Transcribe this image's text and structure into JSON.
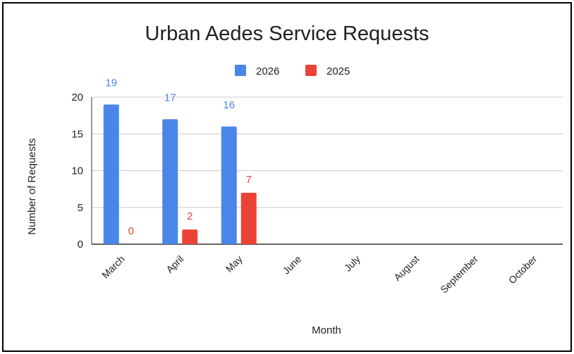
{
  "chart_data": {
    "type": "bar",
    "title": "Urban Aedes Service Requests",
    "xlabel": "Month",
    "ylabel": "Number of Requests",
    "categories": [
      "March",
      "April",
      "May",
      "June",
      "July",
      "August",
      "September",
      "October"
    ],
    "series": [
      {
        "name": "2026",
        "color": "#4a86e8",
        "values": [
          19,
          17,
          16,
          null,
          null,
          null,
          null,
          null
        ]
      },
      {
        "name": "2025",
        "color": "#ea4335",
        "values": [
          0,
          2,
          7,
          null,
          null,
          null,
          null,
          null
        ]
      }
    ],
    "ylim": [
      0,
      20
    ],
    "yticks": [
      0,
      5,
      10,
      15,
      20
    ],
    "grid": true,
    "legend_position": "top"
  }
}
